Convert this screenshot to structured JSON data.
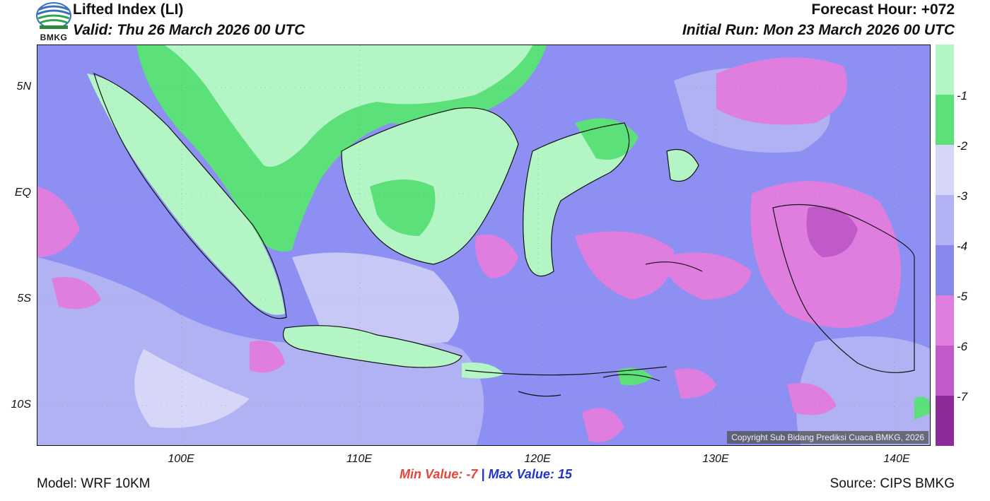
{
  "header": {
    "title": "Lifted Index (LI)",
    "valid": "Valid: Thu 26 March 2026 00 UTC",
    "forecast_hour": "Forecast Hour: +072",
    "initial_run": "Initial Run: Mon 23 March 2026 00 UTC"
  },
  "logo": {
    "text": "BMKG"
  },
  "axes": {
    "lat_labels": [
      "5N",
      "EQ",
      "5S",
      "10S"
    ],
    "lon_labels": [
      "100E",
      "110E",
      "120E",
      "130E",
      "140E"
    ]
  },
  "colorbar": {
    "labels": [
      "-1",
      "-2",
      "-3",
      "-4",
      "-5",
      "-6",
      "-7"
    ],
    "colors": [
      "#b3f5c4",
      "#5be07a",
      "#d6d6f8",
      "#b0b2f4",
      "#8688ee",
      "#e07ee0",
      "#c05ac8",
      "#8e2a9a"
    ]
  },
  "stats": {
    "min_label": "Min Value:",
    "min_value": "-7",
    "separator": "|",
    "max_label": "Max Value:",
    "max_value": "15"
  },
  "footer": {
    "model": "Model: WRF 10KM",
    "source": "Source: CIPS BMKG",
    "copyright": "Copyright Sub Bidang Prediksi Cuaca BMKG, 2026"
  }
}
